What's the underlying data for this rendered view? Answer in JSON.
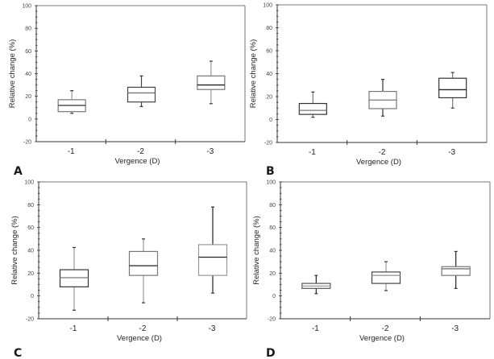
{
  "chart_data": [
    {
      "type": "boxplot",
      "panel": "A",
      "xlabel": "Vergence (D)",
      "ylabel": "Relative change (%)",
      "ylim": [
        -20,
        100
      ],
      "yticks": [
        "-20",
        "0",
        "20",
        "40",
        "60",
        "80",
        "100"
      ],
      "categories": [
        "-1",
        "-2",
        "-3"
      ],
      "boxes": [
        {
          "whisker_low": 5,
          "q1": 6.5,
          "median": 12,
          "q3": 17,
          "whisker_high": 25
        },
        {
          "whisker_low": 11,
          "q1": 15,
          "median": 23,
          "q3": 28,
          "whisker_high": 38
        },
        {
          "whisker_low": 13.5,
          "q1": 26,
          "median": 30,
          "q3": 38,
          "whisker_high": 51
        }
      ]
    },
    {
      "type": "boxplot",
      "panel": "B",
      "xlabel": "Vergence (D)",
      "ylabel": "Relative change (%)",
      "ylim": [
        -20,
        100
      ],
      "yticks": [
        "-20",
        "0",
        "20",
        "40",
        "60",
        "80",
        "100"
      ],
      "categories": [
        "-1",
        "-2",
        "-3"
      ],
      "boxes": [
        {
          "whisker_low": 2,
          "q1": 4.5,
          "median": 8,
          "q3": 14,
          "whisker_high": 24
        },
        {
          "whisker_low": 3,
          "q1": 9.5,
          "median": 17,
          "q3": 24.5,
          "whisker_high": 35
        },
        {
          "whisker_low": 10,
          "q1": 19,
          "median": 26,
          "q3": 36,
          "whisker_high": 41
        }
      ]
    },
    {
      "type": "boxplot",
      "panel": "C",
      "xlabel": "Vergence (D)",
      "ylabel": "Relative change (%)",
      "ylim": [
        -20,
        100
      ],
      "yticks": [
        "-20",
        "0",
        "20",
        "40",
        "60",
        "80",
        "100"
      ],
      "categories": [
        "-1",
        "-2",
        "-3"
      ],
      "boxes": [
        {
          "whisker_low": -12.5,
          "q1": 8,
          "median": 16,
          "q3": 23,
          "whisker_high": 42.5
        },
        {
          "whisker_low": -6,
          "q1": 18,
          "median": 26.5,
          "q3": 39,
          "whisker_high": 50
        },
        {
          "whisker_low": 2.5,
          "q1": 18,
          "median": 34,
          "q3": 45,
          "whisker_high": 78
        }
      ]
    },
    {
      "type": "boxplot",
      "panel": "D",
      "xlabel": "Vergence (D)",
      "ylabel": "Relative change (%)",
      "ylim": [
        -20,
        100
      ],
      "yticks": [
        "-20",
        "0",
        "20",
        "40",
        "60",
        "80",
        "100"
      ],
      "categories": [
        "-1",
        "-2",
        "-3"
      ],
      "boxes": [
        {
          "whisker_low": 2,
          "q1": 6.6,
          "median": 8.7,
          "q3": 11,
          "whisker_high": 18
        },
        {
          "whisker_low": 4.7,
          "q1": 11,
          "median": 18,
          "q3": 21,
          "whisker_high": 30
        },
        {
          "whisker_low": 6.6,
          "q1": 18,
          "median": 23.8,
          "q3": 25.7,
          "whisker_high": 39
        }
      ]
    }
  ]
}
